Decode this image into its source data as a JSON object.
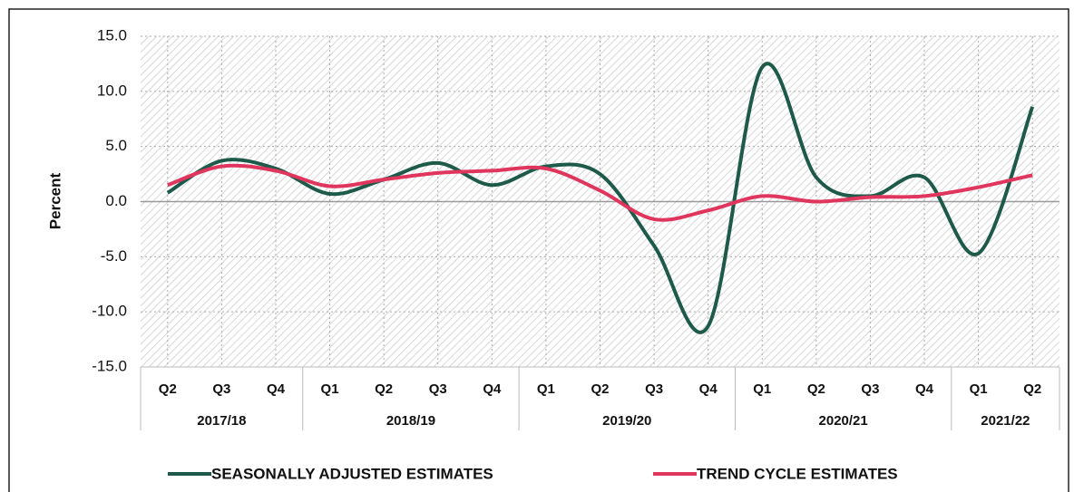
{
  "chart_data": {
    "type": "line",
    "y_label": "Percent",
    "category_groups": [
      {
        "name": "2017/18",
        "categories": [
          "Q2",
          "Q3",
          "Q4"
        ]
      },
      {
        "name": "2018/19",
        "categories": [
          "Q1",
          "Q2",
          "Q3",
          "Q4"
        ]
      },
      {
        "name": "2019/20",
        "categories": [
          "Q1",
          "Q2",
          "Q3",
          "Q4"
        ]
      },
      {
        "name": "2020/21",
        "categories": [
          "Q1",
          "Q2",
          "Q3",
          "Q4"
        ]
      },
      {
        "name": "2021/22",
        "categories": [
          "Q1",
          "Q2"
        ]
      }
    ],
    "series": [
      {
        "name": "SEASONALLY ADJUSTED ESTIMATES",
        "color": "#1e5a4a",
        "values": [
          0.8,
          3.7,
          3.0,
          0.7,
          2.0,
          3.5,
          1.5,
          3.2,
          2.5,
          -4.0,
          -11.3,
          12.2,
          2.2,
          0.5,
          2.2,
          -4.7,
          8.6
        ]
      },
      {
        "name": "TREND CYCLE ESTIMATES",
        "color": "#e0365e",
        "values": [
          1.5,
          3.2,
          2.8,
          1.4,
          2.0,
          2.6,
          2.8,
          3.0,
          1.0,
          -1.6,
          -0.8,
          0.5,
          0.0,
          0.4,
          0.5,
          1.3,
          2.4
        ]
      }
    ],
    "ylim": [
      -15,
      15
    ],
    "yticks": [
      {
        "value": 15,
        "label": "15.0"
      },
      {
        "value": 10,
        "label": "10.0"
      },
      {
        "value": 5,
        "label": "5.0"
      },
      {
        "value": 0,
        "label": "0.0"
      },
      {
        "value": -5,
        "label": "-5.0"
      },
      {
        "value": -10,
        "label": "-10.0"
      },
      {
        "value": -15,
        "label": "-15.0"
      }
    ],
    "grid": true,
    "legend": "bottom"
  }
}
